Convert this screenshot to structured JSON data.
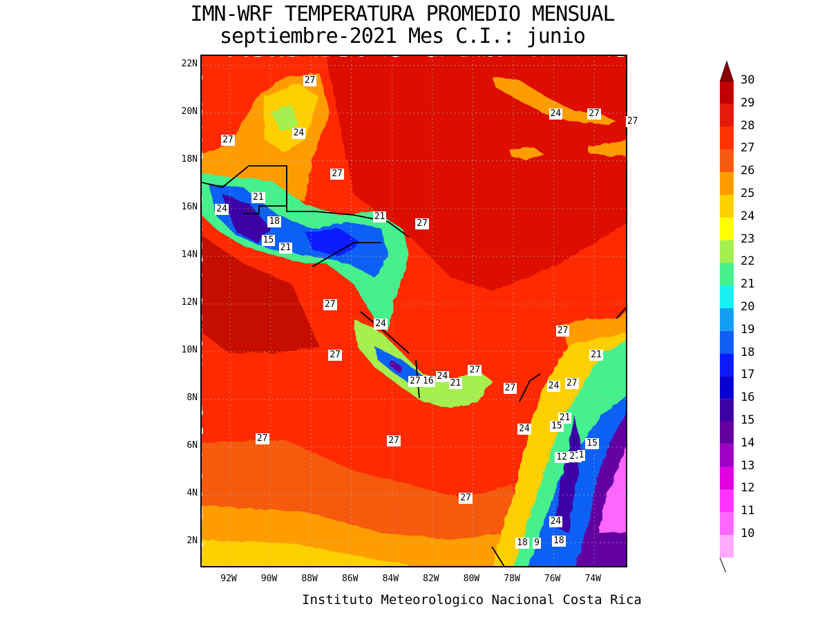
{
  "title": {
    "line1": "IMN-WRF  TEMPERATURA PROMEDIO MENSUAL",
    "line2": "septiembre-2021 Mes C.I.: junio"
  },
  "credit": "Instituto Meteorologico Nacional Costa Rica",
  "map": {
    "lat_labels": [
      "22N",
      "20N",
      "18N",
      "16N",
      "14N",
      "12N",
      "10N",
      "8N",
      "6N",
      "4N",
      "2N"
    ],
    "lon_labels": [
      "92W",
      "90W",
      "88W",
      "86W",
      "84W",
      "82W",
      "80W",
      "78W",
      "76W",
      "74W"
    ],
    "contour_labels": [
      {
        "text": "27",
        "lon": -88.05,
        "lat": 21.3
      },
      {
        "text": "24",
        "lon": -88.6,
        "lat": 19.1
      },
      {
        "text": "27",
        "lon": -92.1,
        "lat": 18.8
      },
      {
        "text": "27",
        "lon": -86.7,
        "lat": 17.4
      },
      {
        "text": "21",
        "lon": -90.6,
        "lat": 16.4
      },
      {
        "text": "24",
        "lon": -92.4,
        "lat": 15.9
      },
      {
        "text": "18",
        "lon": -89.8,
        "lat": 15.4
      },
      {
        "text": "15",
        "lon": -90.1,
        "lat": 14.6
      },
      {
        "text": "21",
        "lon": -89.25,
        "lat": 14.3
      },
      {
        "text": "21",
        "lon": -84.6,
        "lat": 15.6
      },
      {
        "text": "27",
        "lon": -82.5,
        "lat": 15.3
      },
      {
        "text": "27",
        "lon": -87.05,
        "lat": 11.9
      },
      {
        "text": "24",
        "lon": -84.55,
        "lat": 11.1
      },
      {
        "text": "27",
        "lon": -86.8,
        "lat": 9.8
      },
      {
        "text": "27",
        "lon": -82.85,
        "lat": 8.7
      },
      {
        "text": "16",
        "lon": -82.2,
        "lat": 8.7
      },
      {
        "text": "24",
        "lon": -81.5,
        "lat": 8.9
      },
      {
        "text": "21",
        "lon": -80.85,
        "lat": 8.6
      },
      {
        "text": "27",
        "lon": -79.9,
        "lat": 9.15
      },
      {
        "text": "27",
        "lon": -78.15,
        "lat": 8.4
      },
      {
        "text": "24",
        "lon": -76.0,
        "lat": 8.5
      },
      {
        "text": "27",
        "lon": -75.1,
        "lat": 8.6
      },
      {
        "text": "27",
        "lon": -75.55,
        "lat": 10.8
      },
      {
        "text": "21",
        "lon": -73.9,
        "lat": 9.8
      },
      {
        "text": "21",
        "lon": -75.45,
        "lat": 7.15
      },
      {
        "text": "15",
        "lon": -75.85,
        "lat": 6.8
      },
      {
        "text": "24",
        "lon": -77.45,
        "lat": 6.7
      },
      {
        "text": "15",
        "lon": -74.1,
        "lat": 6.1
      },
      {
        "text": "12",
        "lon": -75.6,
        "lat": 5.5
      },
      {
        "text": "27",
        "lon": -74.95,
        "lat": 5.55
      },
      {
        "text": "1",
        "lon": -74.5,
        "lat": 5.6
      },
      {
        "text": "27",
        "lon": -90.4,
        "lat": 6.3
      },
      {
        "text": "27",
        "lon": -83.9,
        "lat": 6.2
      },
      {
        "text": "27",
        "lon": -80.35,
        "lat": 3.8
      },
      {
        "text": "24",
        "lon": -75.9,
        "lat": 2.8
      },
      {
        "text": "18",
        "lon": -77.55,
        "lat": 1.9
      },
      {
        "text": "9",
        "lon": -76.7,
        "lat": 1.9
      },
      {
        "text": "18",
        "lon": -75.75,
        "lat": 2.0
      },
      {
        "text": "24",
        "lon": -75.9,
        "lat": 19.9
      },
      {
        "text": "27",
        "lon": -74.0,
        "lat": 19.9
      },
      {
        "text": "27",
        "lon": -72.1,
        "lat": 19.6
      }
    ]
  },
  "legend": {
    "levels": [
      "30",
      "29",
      "28",
      "27",
      "26",
      "25",
      "24",
      "23",
      "22",
      "21",
      "20",
      "19",
      "18",
      "17",
      "16",
      "15",
      "14",
      "13",
      "12",
      "11",
      "10"
    ],
    "colors": [
      "#8b0000",
      "#c00000",
      "#e41a0c",
      "#ff3300",
      "#f55a0f",
      "#ff9d00",
      "#ffd000",
      "#ffff00",
      "#a5ef50",
      "#45f08d",
      "#16f2f2",
      "#139ff2",
      "#1060f4",
      "#0a1cff",
      "#0700d0",
      "#3d00a5",
      "#6400a0",
      "#9e00c5",
      "#e000e0",
      "#ff33ff",
      "#ff66ff",
      "#ffaaff"
    ]
  }
}
